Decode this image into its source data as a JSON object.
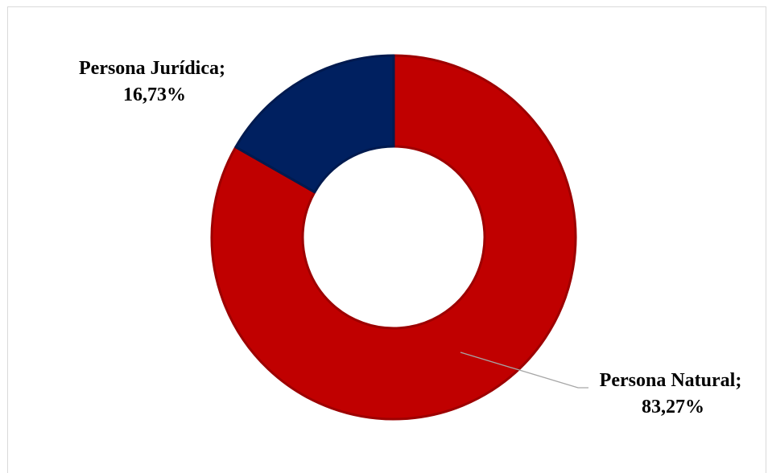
{
  "chart_data": {
    "type": "pie",
    "variant": "donut",
    "title": "",
    "categories": [
      "Persona Natural",
      "Persona Jurídica"
    ],
    "values": [
      83.27,
      16.73
    ],
    "value_labels": [
      "83,27%",
      "16,73%"
    ],
    "label_texts": [
      "Persona Natural;",
      "Persona Jurídica;"
    ],
    "colors": [
      "#c00000",
      "#002060"
    ],
    "legend": "none",
    "start_angle": "top, clockwise"
  }
}
